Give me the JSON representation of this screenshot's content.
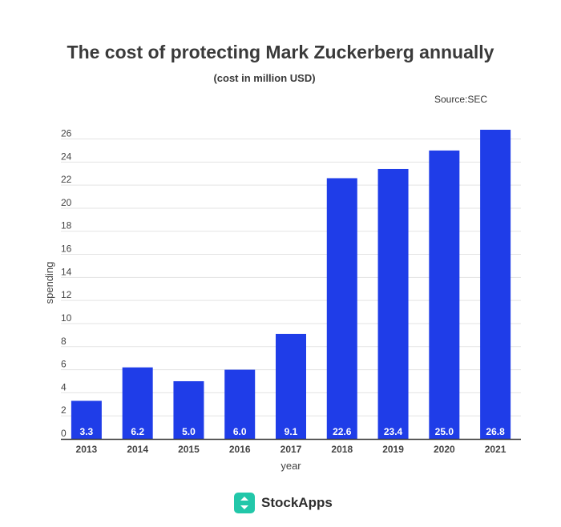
{
  "chart_data": {
    "type": "bar",
    "title": "The cost of protecting Mark Zuckerberg annually",
    "subtitle": "(cost in million USD)",
    "source": "Source:SEC",
    "xlabel": "year",
    "ylabel": "spending",
    "categories": [
      "2013",
      "2014",
      "2015",
      "2016",
      "2017",
      "2018",
      "2019",
      "2020",
      "2021"
    ],
    "values": [
      3.3,
      6.2,
      5.0,
      6.0,
      9.1,
      22.6,
      23.4,
      25.0,
      26.8
    ],
    "value_labels": [
      "3.3",
      "6.2",
      "5.0",
      "6.0",
      "9.1",
      "22.6",
      "23.4",
      "25.0",
      "26.8"
    ],
    "y_ticks": [
      0,
      2,
      4,
      6,
      8,
      10,
      12,
      14,
      16,
      18,
      20,
      22,
      24,
      26
    ],
    "ylim": [
      0,
      26.8
    ],
    "grid": true,
    "legend": "none",
    "bar_color": "#1f3de8"
  },
  "branding": {
    "logo_text": "StockApps",
    "logo_color": "#22c7a9"
  }
}
